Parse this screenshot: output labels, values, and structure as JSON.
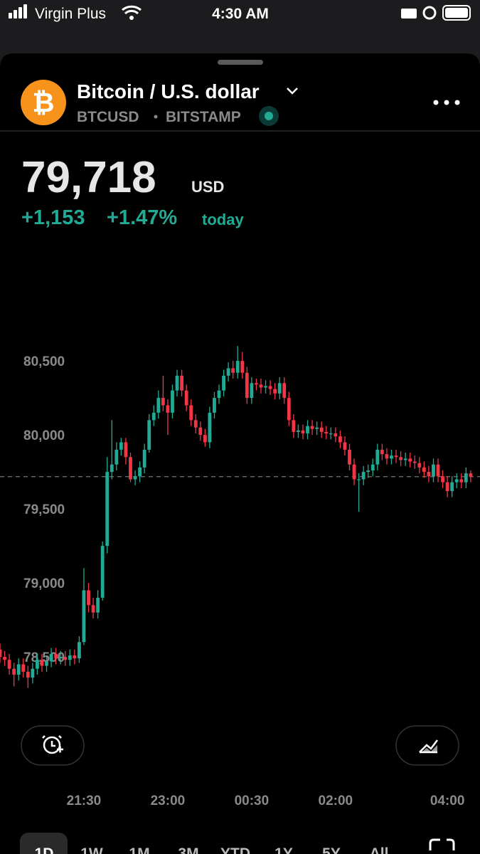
{
  "status_bar": {
    "carrier": "Virgin Plus",
    "time": "4:30 AM"
  },
  "header": {
    "title": "Bitcoin / U.S. dollar",
    "symbol": "BTCUSD",
    "exchange": "BITSTAMP"
  },
  "quote": {
    "price": "79,718",
    "currency": "USD",
    "change": "+1,153",
    "change_pct": "+1.47%",
    "period": "today"
  },
  "chart_data": {
    "type": "candlestick",
    "x": [
      0,
      5,
      10,
      15,
      20,
      25,
      30,
      35,
      40,
      45,
      50,
      55,
      60,
      65,
      70,
      75,
      80,
      85,
      90,
      95,
      100,
      105,
      110,
      115,
      120,
      125,
      130,
      135,
      140,
      145,
      150,
      155,
      160,
      165,
      170,
      175,
      180,
      185,
      190,
      195,
      200,
      205,
      210,
      215,
      220,
      225,
      230,
      235,
      240,
      245,
      250,
      255,
      260,
      265,
      270,
      275,
      280,
      285,
      290,
      295,
      300,
      305,
      310,
      315,
      320,
      325,
      330,
      335,
      340,
      345,
      350,
      355,
      360,
      365,
      370,
      375,
      380,
      385,
      390,
      395,
      400,
      405,
      410,
      415,
      420,
      425,
      430,
      435,
      440,
      445,
      450,
      455,
      460,
      465,
      470,
      475,
      480,
      485,
      490,
      495,
      500,
      505
    ],
    "open": [
      78550,
      78500,
      78480,
      78420,
      78380,
      78450,
      78400,
      78360,
      78420,
      78480,
      78440,
      78470,
      78520,
      78490,
      78500,
      78480,
      78510,
      78490,
      78600,
      78950,
      78850,
      78800,
      78900,
      79250,
      79750,
      79800,
      79900,
      79950,
      79850,
      79700,
      79720,
      79780,
      79900,
      80100,
      80150,
      80250,
      80200,
      80150,
      80300,
      80400,
      80300,
      80200,
      80100,
      80050,
      80000,
      79950,
      80150,
      80250,
      80300,
      80400,
      80450,
      80420,
      80500,
      80420,
      80250,
      80350,
      80340,
      80320,
      80330,
      80310,
      80280,
      80350,
      80250,
      80100,
      80020,
      80030,
      80010,
      80060,
      80040,
      80050,
      80020,
      80010,
      80010,
      79990,
      79950,
      79900,
      79800,
      79700,
      79700,
      79750,
      79760,
      79800,
      79900,
      79870,
      79840,
      79860,
      79850,
      79830,
      79840,
      79820,
      79810,
      79780,
      79750,
      79720,
      79800,
      79720,
      79680,
      79620,
      79680,
      79700,
      79680,
      79740
    ],
    "high": [
      78590,
      78540,
      78520,
      78460,
      78490,
      78490,
      78440,
      78460,
      78520,
      78520,
      78510,
      78560,
      78560,
      78540,
      78540,
      78550,
      78550,
      78640,
      79100,
      79000,
      78900,
      78950,
      79280,
      79850,
      80100,
      79950,
      79980,
      79980,
      79880,
      79760,
      79820,
      79940,
      80140,
      80200,
      80300,
      80400,
      80240,
      80340,
      80440,
      80440,
      80340,
      80240,
      80140,
      80090,
      80040,
      80190,
      80290,
      80340,
      80440,
      80490,
      80500,
      80600,
      80560,
      80460,
      80390,
      80380,
      80380,
      80370,
      80370,
      80350,
      80390,
      80390,
      80290,
      80140,
      80070,
      80070,
      80100,
      80100,
      80090,
      80090,
      80060,
      80050,
      80050,
      80030,
      79990,
      79940,
      79840,
      79740,
      79790,
      79800,
      79840,
      79940,
      79940,
      79910,
      79900,
      79900,
      79890,
      79880,
      79880,
      79860,
      79850,
      79820,
      79790,
      79840,
      79840,
      79760,
      79720,
      79720,
      79740,
      79740,
      79780,
      79760
    ],
    "low": [
      78460,
      78440,
      78380,
      78300,
      78340,
      78360,
      78290,
      78320,
      78380,
      78400,
      78400,
      78430,
      78450,
      78450,
      78440,
      78440,
      78450,
      78460,
      78580,
      78800,
      78760,
      78760,
      78880,
      79200,
      79700,
      79760,
      79860,
      79800,
      79680,
      79660,
      79680,
      79740,
      79880,
      80060,
      80110,
      80160,
      80000,
      80110,
      80260,
      80260,
      80160,
      80060,
      80010,
      79960,
      79920,
      79910,
      80110,
      80210,
      80260,
      80360,
      80380,
      80380,
      80380,
      80210,
      80210,
      80300,
      80280,
      80280,
      80270,
      80240,
      80240,
      80210,
      80060,
      79980,
      79980,
      79970,
      79970,
      80000,
      80000,
      79980,
      79970,
      79970,
      79950,
      79910,
      79860,
      79760,
      79660,
      79480,
      79660,
      79710,
      79720,
      79760,
      79830,
      79800,
      79800,
      79810,
      79790,
      79790,
      79780,
      79770,
      79740,
      79710,
      79680,
      79680,
      79680,
      79640,
      79580,
      79580,
      79640,
      79640,
      79640,
      79680
    ],
    "close": [
      78500,
      78480,
      78420,
      78380,
      78450,
      78400,
      78360,
      78420,
      78480,
      78440,
      78470,
      78520,
      78490,
      78500,
      78480,
      78510,
      78490,
      78600,
      78950,
      78850,
      78800,
      78900,
      79250,
      79750,
      79800,
      79900,
      79950,
      79850,
      79700,
      79720,
      79780,
      79900,
      80100,
      80150,
      80250,
      80200,
      80150,
      80300,
      80400,
      80300,
      80200,
      80100,
      80050,
      80000,
      79950,
      80150,
      80250,
      80300,
      80400,
      80450,
      80420,
      80500,
      80420,
      80250,
      80350,
      80340,
      80320,
      80330,
      80310,
      80280,
      80350,
      80250,
      80100,
      80020,
      80030,
      80010,
      80060,
      80040,
      80050,
      80020,
      80010,
      80010,
      79990,
      79950,
      79900,
      79800,
      79700,
      79700,
      79750,
      79760,
      79800,
      79900,
      79870,
      79840,
      79860,
      79850,
      79830,
      79840,
      79820,
      79810,
      79780,
      79750,
      79720,
      79800,
      79720,
      79680,
      79620,
      79680,
      79700,
      79680,
      79740,
      79718
    ],
    "xlim": [
      0,
      515
    ],
    "xticks": [
      {
        "value": 90,
        "label": "21:30"
      },
      {
        "value": 180,
        "label": "23:00"
      },
      {
        "value": 270,
        "label": "00:30"
      },
      {
        "value": 360,
        "label": "02:00"
      },
      {
        "value": 480,
        "label": "04:00"
      }
    ],
    "ylim": [
      78130,
      81015
    ],
    "yticks": [
      {
        "value": 78500,
        "label": "78,500"
      },
      {
        "value": 79000,
        "label": "79,000"
      },
      {
        "value": 79500,
        "label": "79,500"
      },
      {
        "value": 80000,
        "label": "80,000"
      },
      {
        "value": 80500,
        "label": "80,500"
      }
    ],
    "up_color": "#22ab94",
    "down_color": "#f23645"
  },
  "range_tabs": [
    "1D",
    "1W",
    "1M",
    "3M",
    "YTD",
    "1Y",
    "5Y",
    "All"
  ]
}
